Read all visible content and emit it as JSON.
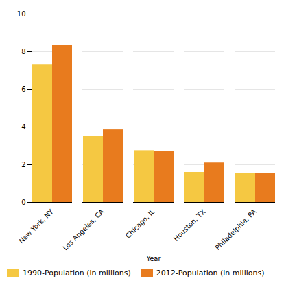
{
  "chart_data": {
    "type": "bar",
    "xlabel": "Year",
    "categories": [
      "New York, NY",
      "Los Angeles, CA",
      "Chicago, IL",
      "Houston, TX",
      "Philadelphia, PA"
    ],
    "series": [
      {
        "name": "1990-Population (in millions)",
        "color": "#F5C842",
        "values": [
          7.3,
          3.5,
          2.75,
          1.6,
          1.55
        ]
      },
      {
        "name": "2012-Population (in millions)",
        "color": "#E87B1E",
        "values": [
          8.35,
          3.85,
          2.7,
          2.1,
          1.55
        ]
      }
    ],
    "ylim": [
      0,
      10
    ],
    "yticks": [
      0,
      2,
      4,
      6,
      8,
      10
    ],
    "grid": true,
    "legend": "lower left"
  }
}
